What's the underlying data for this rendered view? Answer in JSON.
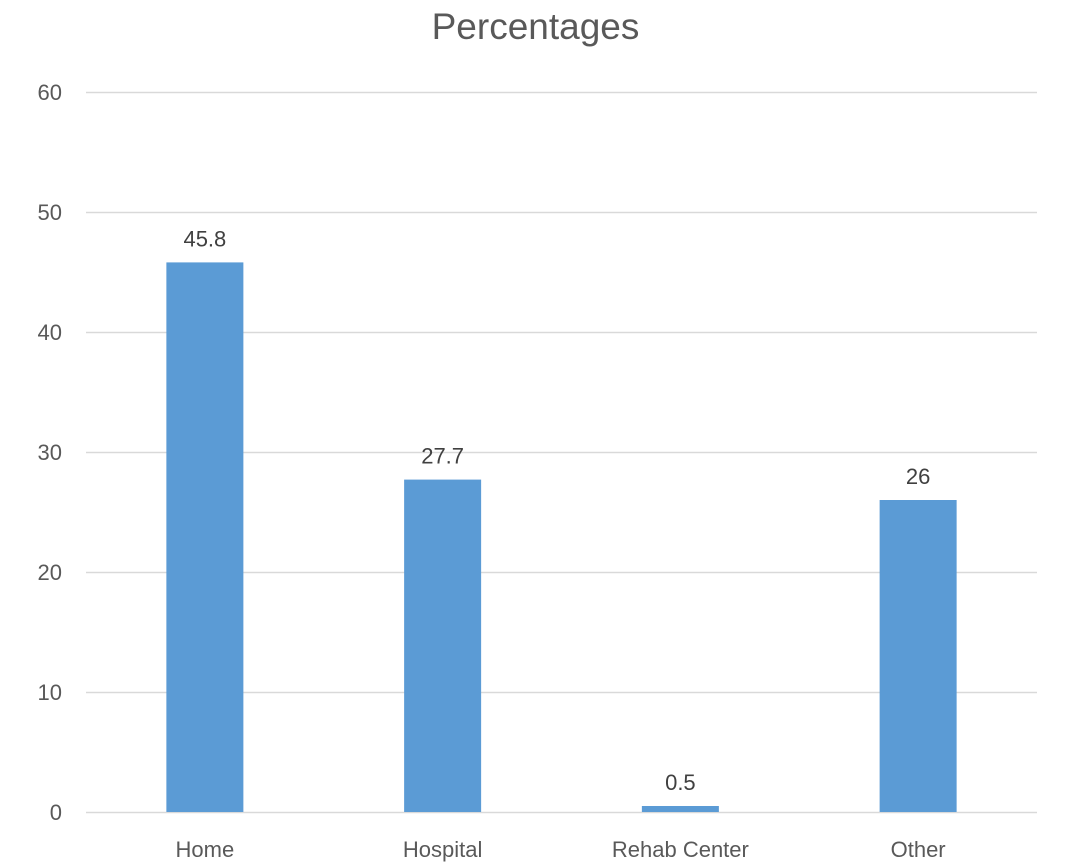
{
  "chart_data": {
    "type": "bar",
    "title": "Percentages",
    "xlabel": "",
    "ylabel": "",
    "categories": [
      "Home",
      "Hospital",
      "Rehab Center",
      "Other"
    ],
    "values": [
      45.8,
      27.7,
      0.5,
      26
    ],
    "data_labels": [
      "45.8",
      "27.7",
      "0.5",
      "26"
    ],
    "ylim": [
      0,
      60
    ],
    "y_ticks": [
      0,
      10,
      20,
      30,
      40,
      50,
      60
    ],
    "grid": true,
    "legend": "none",
    "colors": {
      "bar": "#5B9BD5",
      "grid": "#D9D9D9",
      "axis_text": "#595959",
      "label_text": "#404040"
    }
  }
}
